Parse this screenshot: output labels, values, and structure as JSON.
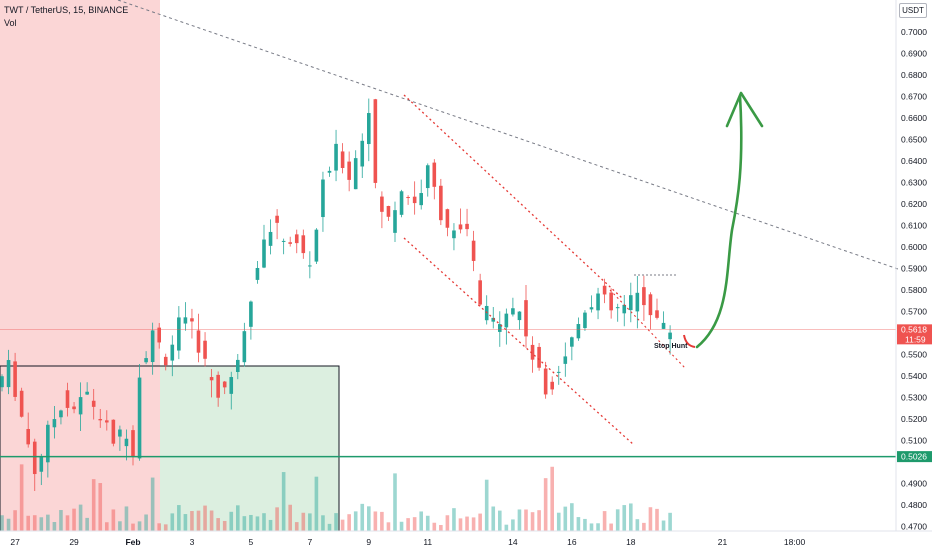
{
  "header": {
    "symbol_line": "TWT / TetherUS, 15, BINANCE",
    "indicator": "Vol"
  },
  "currency_badge": "USDT",
  "colors": {
    "up": "#26a69a",
    "down": "#ef5350",
    "red_zone": "#fbd6d6",
    "green_zone": "#dcefe0",
    "support_line": "#1e9a6c",
    "arrow": "#3a9a45",
    "channel": "#e53935",
    "trendline": "#787b86"
  },
  "chart_data": {
    "type": "candlestick",
    "title": "TWT / TetherUS, 15, BINANCE",
    "ylim": [
      0.468,
      0.715
    ],
    "y_ticks": [
      "0.7000",
      "0.6900",
      "0.6800",
      "0.6700",
      "0.6600",
      "0.6500",
      "0.6400",
      "0.6300",
      "0.6200",
      "0.6100",
      "0.6000",
      "0.5900",
      "0.5800",
      "0.5700",
      "0.5500",
      "0.5400",
      "0.5300",
      "0.5200",
      "0.5100",
      "0.4900",
      "0.4800",
      "0.4700"
    ],
    "y_tick_values": [
      0.7,
      0.69,
      0.68,
      0.67,
      0.66,
      0.65,
      0.64,
      0.63,
      0.62,
      0.61,
      0.6,
      0.59,
      0.58,
      0.57,
      0.55,
      0.54,
      0.53,
      0.52,
      0.51,
      0.49,
      0.48,
      0.47
    ],
    "x_ticks": [
      "27",
      "29",
      "Feb",
      "3",
      "5",
      "7",
      "9",
      "11",
      "14",
      "16",
      "18",
      "21",
      "18:00"
    ],
    "x_tick_index": [
      2,
      11,
      20,
      29,
      38,
      47,
      56,
      65,
      78,
      87,
      96,
      110,
      121
    ],
    "price_path": [
      [
        0,
        0.535
      ],
      [
        2,
        0.545
      ],
      [
        4,
        0.52
      ],
      [
        6,
        0.495
      ],
      [
        8,
        0.515
      ],
      [
        10,
        0.528
      ],
      [
        12,
        0.525
      ],
      [
        14,
        0.532
      ],
      [
        16,
        0.52
      ],
      [
        18,
        0.51
      ],
      [
        20,
        0.515
      ],
      [
        21,
        0.505
      ],
      [
        22,
        0.545
      ],
      [
        24,
        0.56
      ],
      [
        26,
        0.548
      ],
      [
        28,
        0.565
      ],
      [
        30,
        0.562
      ],
      [
        32,
        0.545
      ],
      [
        34,
        0.532
      ],
      [
        36,
        0.538
      ],
      [
        38,
        0.565
      ],
      [
        40,
        0.595
      ],
      [
        42,
        0.61
      ],
      [
        44,
        0.605
      ],
      [
        46,
        0.6
      ],
      [
        48,
        0.592
      ],
      [
        50,
        0.63
      ],
      [
        52,
        0.645
      ],
      [
        54,
        0.633
      ],
      [
        56,
        0.652
      ],
      [
        57,
        0.668
      ],
      [
        58,
        0.622
      ],
      [
        60,
        0.612
      ],
      [
        62,
        0.628
      ],
      [
        64,
        0.62
      ],
      [
        66,
        0.636
      ],
      [
        68,
        0.615
      ],
      [
        70,
        0.605
      ],
      [
        72,
        0.607
      ],
      [
        74,
        0.572
      ],
      [
        76,
        0.565
      ],
      [
        78,
        0.572
      ],
      [
        80,
        0.57
      ],
      [
        82,
        0.548
      ],
      [
        84,
        0.532
      ],
      [
        86,
        0.545
      ],
      [
        88,
        0.558
      ],
      [
        90,
        0.573
      ],
      [
        92,
        0.578
      ],
      [
        94,
        0.57
      ],
      [
        96,
        0.572
      ],
      [
        98,
        0.578
      ],
      [
        100,
        0.571
      ],
      [
        102,
        0.5618
      ]
    ],
    "last_price": "0.5618",
    "countdown": "11:59",
    "support_level": "0.5026",
    "horizontal_lines": [
      0.5618,
      0.5026
    ],
    "annotations": [
      "Stop Hunt"
    ],
    "legend": "none",
    "grid": false
  },
  "drawings": {
    "stop_hunt_label": "Stop Hunt"
  }
}
